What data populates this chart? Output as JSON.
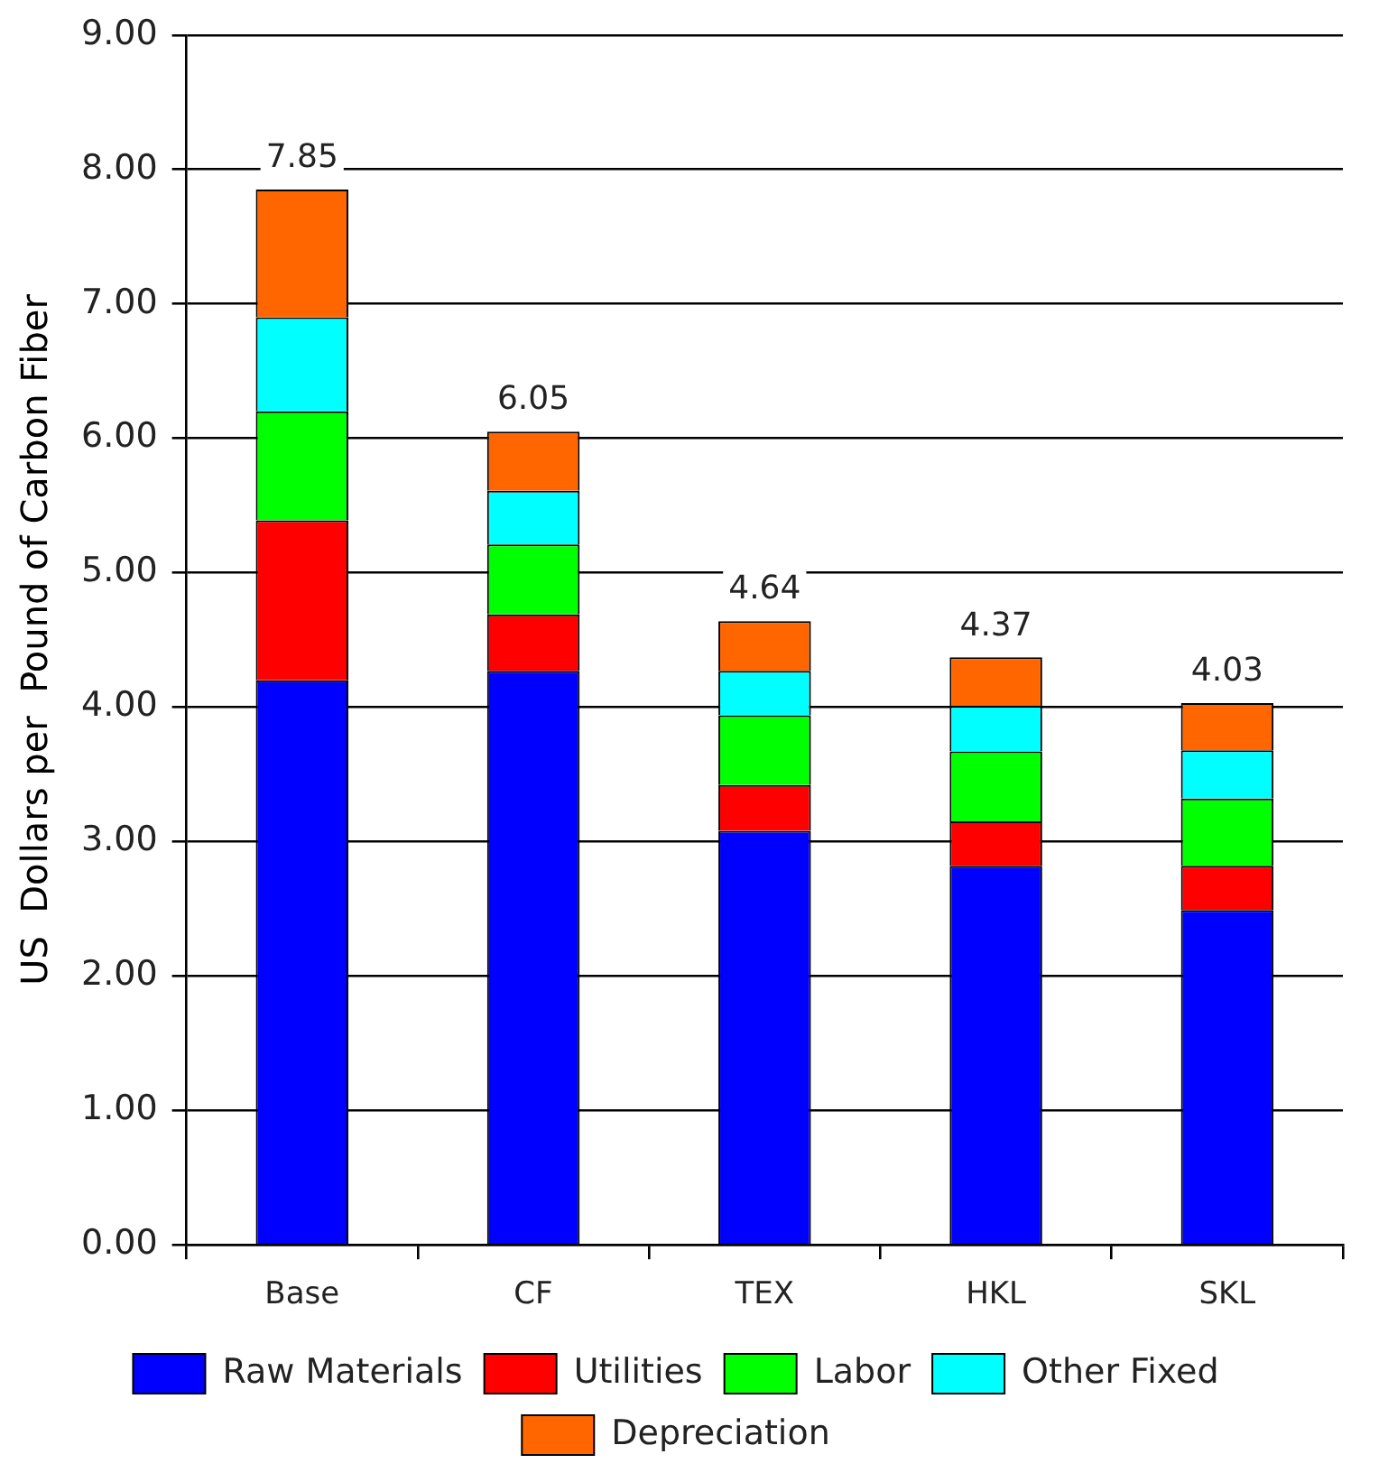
{
  "chart_data": {
    "type": "bar",
    "stacked": true,
    "ylabel": "US  Dollars per  Pound of Carbon Fiber",
    "categories": [
      "Base",
      "CF",
      "TEX",
      "HKL",
      "SKL"
    ],
    "series": [
      {
        "name": "Raw Materials",
        "color": "#0000ff",
        "values": [
          4.2,
          4.27,
          3.08,
          2.82,
          2.49
        ]
      },
      {
        "name": "Utilities",
        "color": "#ff0000",
        "values": [
          1.19,
          0.42,
          0.34,
          0.33,
          0.33
        ]
      },
      {
        "name": "Labor",
        "color": "#00ff00",
        "values": [
          0.81,
          0.52,
          0.52,
          0.52,
          0.5
        ]
      },
      {
        "name": "Other Fixed",
        "color": "#00ffff",
        "values": [
          0.7,
          0.4,
          0.33,
          0.34,
          0.36
        ]
      },
      {
        "name": "Depreciation",
        "color": "#ff6600",
        "values": [
          0.95,
          0.44,
          0.37,
          0.36,
          0.35
        ]
      }
    ],
    "totals": [
      "7.85",
      "6.05",
      "4.64",
      "4.37",
      "4.03"
    ],
    "ylim": [
      0,
      9
    ],
    "yticks": [
      {
        "value": 0,
        "label": "0.00"
      },
      {
        "value": 1,
        "label": "1.00"
      },
      {
        "value": 2,
        "label": "2.00"
      },
      {
        "value": 3,
        "label": "3.00"
      },
      {
        "value": 4,
        "label": "4.00"
      },
      {
        "value": 5,
        "label": "5.00"
      },
      {
        "value": 6,
        "label": "6.00"
      },
      {
        "value": 7,
        "label": "7.00"
      },
      {
        "value": 8,
        "label": "8.00"
      },
      {
        "value": 9,
        "label": "9.00"
      }
    ],
    "grid": "y",
    "legend": "bottom"
  }
}
